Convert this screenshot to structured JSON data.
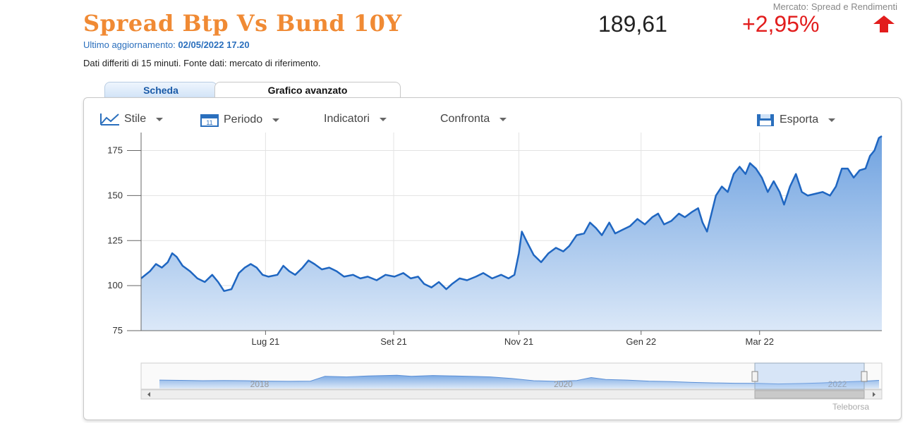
{
  "header": {
    "market_label": "Mercato: Spread e Rendimenti",
    "title": "Spread Btp Vs Bund 10Y",
    "price": "189,61",
    "change": "+2,95%",
    "update_label": "Ultimo aggiornamento:",
    "update_value": "02/05/2022 17.20",
    "delayed_note": "Dati differiti di 15 minuti.  Fonte dati: mercato di riferimento."
  },
  "tabs": [
    {
      "label": "Scheda"
    },
    {
      "label": "Grafico avanzato"
    }
  ],
  "toolbar": {
    "stile": "Stile",
    "periodo": "Periodo",
    "indicatori": "Indicatori",
    "confronta": "Confronta",
    "esporta": "Esporta"
  },
  "colors": {
    "title": "#f08a34",
    "change": "#e21d1d",
    "line": "#1f66c1",
    "area_top": "#6fa2e0",
    "area_bottom": "#dbe8f8"
  },
  "watermark": "Teleborsa",
  "chart_data": {
    "type": "area",
    "ylim": [
      75,
      185
    ],
    "y_ticks": [
      75,
      100,
      125,
      150,
      175
    ],
    "x_ticks": [
      {
        "label": "Lug 21",
        "t": 0.168
      },
      {
        "label": "Set 21",
        "t": 0.341
      },
      {
        "label": "Nov 21",
        "t": 0.51
      },
      {
        "label": "Gen 22",
        "t": 0.675
      },
      {
        "label": "Mar 22",
        "t": 0.835
      }
    ],
    "series": [
      {
        "values": [
          [
            0.0,
            104
          ],
          [
            0.012,
            108
          ],
          [
            0.02,
            112
          ],
          [
            0.028,
            110
          ],
          [
            0.036,
            113
          ],
          [
            0.042,
            118
          ],
          [
            0.048,
            116
          ],
          [
            0.056,
            111
          ],
          [
            0.066,
            108
          ],
          [
            0.076,
            104
          ],
          [
            0.086,
            102
          ],
          [
            0.096,
            106
          ],
          [
            0.104,
            102
          ],
          [
            0.112,
            97
          ],
          [
            0.122,
            98
          ],
          [
            0.132,
            107
          ],
          [
            0.14,
            110
          ],
          [
            0.148,
            112
          ],
          [
            0.156,
            110
          ],
          [
            0.164,
            106
          ],
          [
            0.172,
            105
          ],
          [
            0.184,
            106
          ],
          [
            0.192,
            111
          ],
          [
            0.2,
            108
          ],
          [
            0.208,
            106
          ],
          [
            0.218,
            110
          ],
          [
            0.226,
            114
          ],
          [
            0.234,
            112
          ],
          [
            0.244,
            109
          ],
          [
            0.254,
            110
          ],
          [
            0.264,
            108
          ],
          [
            0.274,
            105
          ],
          [
            0.286,
            106
          ],
          [
            0.296,
            104
          ],
          [
            0.306,
            105
          ],
          [
            0.318,
            103
          ],
          [
            0.33,
            106
          ],
          [
            0.342,
            105
          ],
          [
            0.354,
            107
          ],
          [
            0.364,
            104
          ],
          [
            0.374,
            105
          ],
          [
            0.382,
            101
          ],
          [
            0.392,
            99
          ],
          [
            0.402,
            102
          ],
          [
            0.412,
            98
          ],
          [
            0.42,
            101
          ],
          [
            0.43,
            104
          ],
          [
            0.44,
            103
          ],
          [
            0.452,
            105
          ],
          [
            0.462,
            107
          ],
          [
            0.474,
            104
          ],
          [
            0.486,
            106
          ],
          [
            0.496,
            104
          ],
          [
            0.504,
            106
          ],
          [
            0.51,
            118
          ],
          [
            0.514,
            130
          ],
          [
            0.52,
            125
          ],
          [
            0.53,
            117
          ],
          [
            0.54,
            113
          ],
          [
            0.55,
            118
          ],
          [
            0.56,
            121
          ],
          [
            0.57,
            119
          ],
          [
            0.578,
            122
          ],
          [
            0.588,
            128
          ],
          [
            0.598,
            129
          ],
          [
            0.606,
            135
          ],
          [
            0.614,
            132
          ],
          [
            0.622,
            128
          ],
          [
            0.632,
            135
          ],
          [
            0.64,
            129
          ],
          [
            0.65,
            131
          ],
          [
            0.66,
            133
          ],
          [
            0.67,
            137
          ],
          [
            0.68,
            134
          ],
          [
            0.69,
            138
          ],
          [
            0.698,
            140
          ],
          [
            0.706,
            134
          ],
          [
            0.716,
            136
          ],
          [
            0.726,
            140
          ],
          [
            0.734,
            138
          ],
          [
            0.744,
            141
          ],
          [
            0.752,
            143
          ],
          [
            0.758,
            135
          ],
          [
            0.764,
            130
          ],
          [
            0.77,
            140
          ],
          [
            0.776,
            150
          ],
          [
            0.784,
            155
          ],
          [
            0.792,
            152
          ],
          [
            0.8,
            162
          ],
          [
            0.808,
            166
          ],
          [
            0.816,
            162
          ],
          [
            0.822,
            168
          ],
          [
            0.83,
            165
          ],
          [
            0.838,
            160
          ],
          [
            0.846,
            152
          ],
          [
            0.854,
            158
          ],
          [
            0.862,
            152
          ],
          [
            0.868,
            145
          ],
          [
            0.876,
            155
          ],
          [
            0.884,
            162
          ],
          [
            0.892,
            152
          ],
          [
            0.9,
            150
          ],
          [
            0.91,
            151
          ],
          [
            0.92,
            152
          ],
          [
            0.93,
            150
          ],
          [
            0.938,
            155
          ],
          [
            0.946,
            165
          ],
          [
            0.954,
            165
          ],
          [
            0.962,
            160
          ],
          [
            0.97,
            164
          ],
          [
            0.978,
            165
          ],
          [
            0.984,
            172
          ],
          [
            0.99,
            175
          ],
          [
            0.996,
            182
          ],
          [
            1.0,
            183
          ]
        ]
      }
    ],
    "navigator": {
      "x_ticks": [
        {
          "label": "2018",
          "t": 0.16
        },
        {
          "label": "2020",
          "t": 0.57
        },
        {
          "label": "2022",
          "t": 0.94
        }
      ],
      "selection": [
        0.84,
        1.0
      ],
      "values": [
        [
          0.0,
          0.6
        ],
        [
          0.03,
          0.58
        ],
        [
          0.06,
          0.55
        ],
        [
          0.09,
          0.57
        ],
        [
          0.12,
          0.55
        ],
        [
          0.15,
          0.52
        ],
        [
          0.18,
          0.5
        ],
        [
          0.21,
          0.52
        ],
        [
          0.23,
          0.9
        ],
        [
          0.26,
          0.85
        ],
        [
          0.29,
          0.92
        ],
        [
          0.31,
          0.95
        ],
        [
          0.33,
          0.98
        ],
        [
          0.35,
          0.9
        ],
        [
          0.38,
          0.96
        ],
        [
          0.41,
          0.92
        ],
        [
          0.44,
          0.88
        ],
        [
          0.46,
          0.85
        ],
        [
          0.49,
          0.72
        ],
        [
          0.52,
          0.55
        ],
        [
          0.55,
          0.5
        ],
        [
          0.58,
          0.56
        ],
        [
          0.6,
          0.8
        ],
        [
          0.62,
          0.65
        ],
        [
          0.65,
          0.6
        ],
        [
          0.68,
          0.52
        ],
        [
          0.71,
          0.48
        ],
        [
          0.74,
          0.42
        ],
        [
          0.77,
          0.38
        ],
        [
          0.8,
          0.35
        ],
        [
          0.83,
          0.34
        ],
        [
          0.86,
          0.3
        ],
        [
          0.89,
          0.33
        ],
        [
          0.92,
          0.38
        ],
        [
          0.95,
          0.45
        ],
        [
          0.98,
          0.52
        ],
        [
          1.0,
          0.58
        ]
      ]
    }
  }
}
